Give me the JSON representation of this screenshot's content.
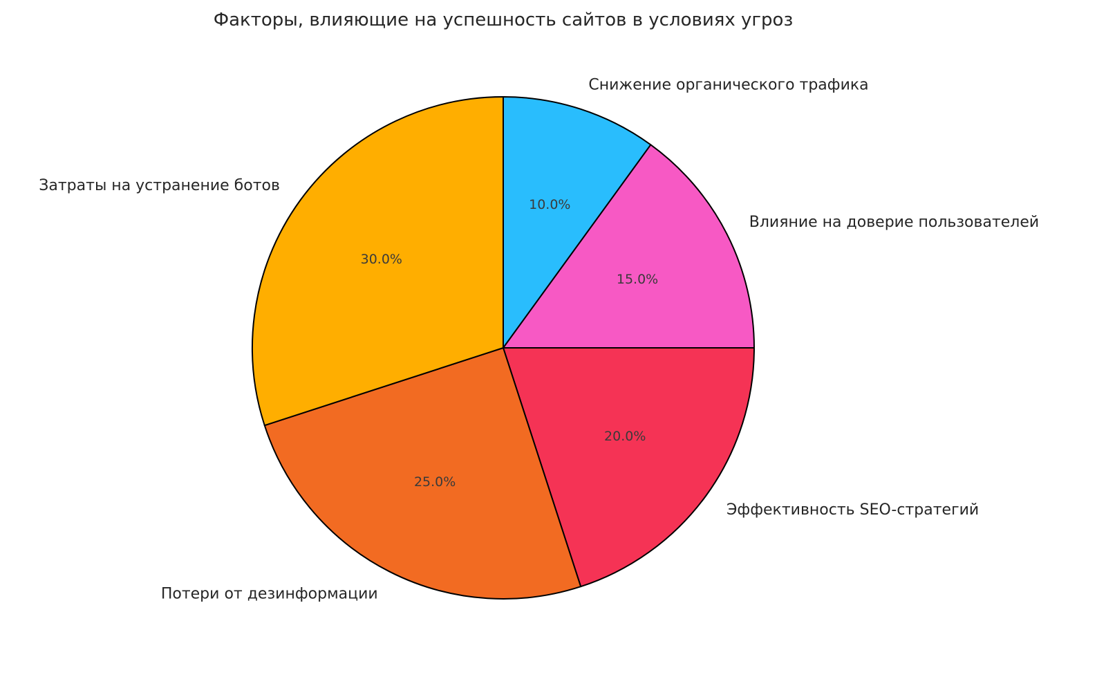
{
  "chart_data": {
    "type": "pie",
    "title": "Факторы, влияющие на успешность сайтов в условиях угроз",
    "start_angle": "top",
    "direction": "clockwise",
    "slices": [
      {
        "label": "Снижение органического трафика",
        "value": 10,
        "pct_label": "10.0%",
        "color": "#29BDFD"
      },
      {
        "label": "Влияние на доверие пользователей",
        "value": 15,
        "pct_label": "15.0%",
        "color": "#F759C4"
      },
      {
        "label": "Эффективность SEO-стратегий",
        "value": 20,
        "pct_label": "20.0%",
        "color": "#F53355"
      },
      {
        "label": "Потери от дезинформации",
        "value": 25,
        "pct_label": "25.0%",
        "color": "#F26B22"
      },
      {
        "label": "Затраты на устранение ботов",
        "value": 30,
        "pct_label": "30.0%",
        "color": "#FFAE00"
      }
    ]
  }
}
